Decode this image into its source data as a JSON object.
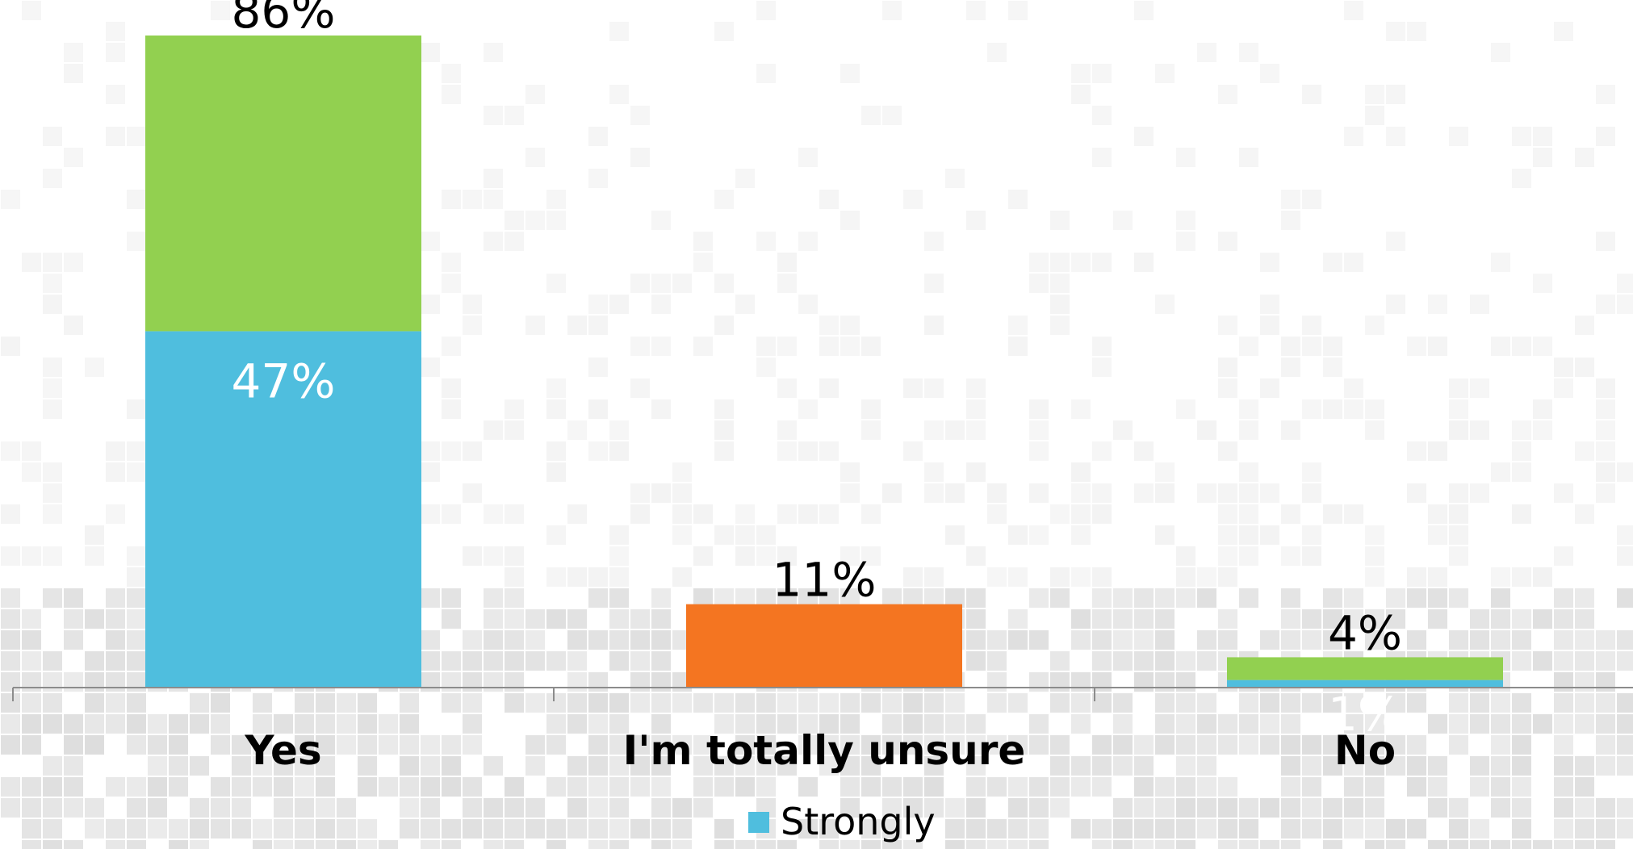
{
  "chart_data": {
    "type": "bar",
    "categories": [
      "Yes",
      "I'm totally unsure",
      "No"
    ],
    "series": [
      {
        "name": "Strongly",
        "color": "#4FBEDE",
        "values": [
          47,
          null,
          1
        ],
        "labels": [
          "47%",
          "",
          "1%"
        ]
      },
      {
        "color": "#92D050",
        "values": [
          39,
          null,
          3
        ],
        "labels": [
          "",
          "",
          ""
        ]
      },
      {
        "color": "#F47521",
        "values": [
          null,
          11,
          null
        ],
        "labels": [
          "",
          "",
          ""
        ]
      }
    ],
    "totals": [
      86,
      11,
      4
    ],
    "total_labels": [
      "86%",
      "11%",
      "4%"
    ],
    "ylim": [
      0,
      86
    ],
    "legend": {
      "position": "bottom",
      "items": [
        {
          "label": "Strongly",
          "color": "#4FBEDE"
        }
      ]
    },
    "grid": false,
    "background_pattern": true
  }
}
